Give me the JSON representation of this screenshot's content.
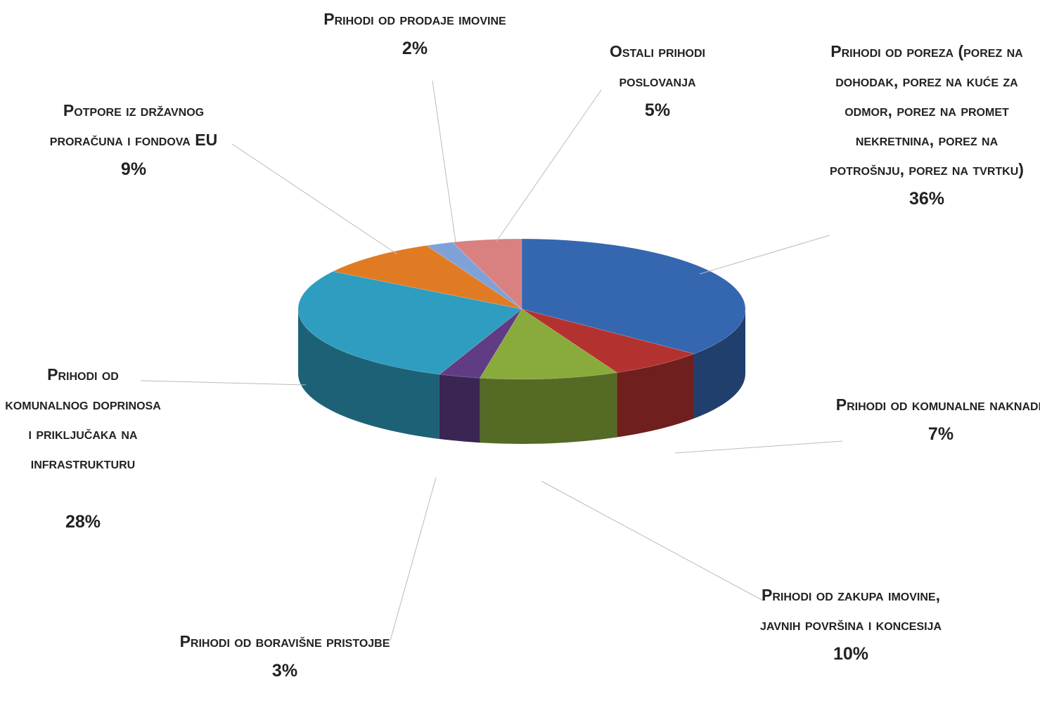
{
  "chart_data": {
    "type": "pie3d",
    "categories": [
      "Prihodi od poreza (porez na dohodak, porez na kuće za odmor, porez na promet nekretnina, porez na potrošnju, porez na tvrtku)",
      "Prihodi od komunalne naknade",
      "Prihodi od zakupa imovine, javnih površina i koncesija",
      "Prihodi od boravišne pristojbe",
      "Prihodi od komunalnog doprinosa i priključaka na infrastrukturu",
      "Potpore iz državnog proračuna i fondova EU",
      "Prihodi od prodaje imovine",
      "Ostali prihodi poslovanja"
    ],
    "values": [
      36,
      7,
      10,
      3,
      28,
      9,
      2,
      5
    ],
    "value_labels": [
      "36%",
      "7%",
      "10%",
      "3%",
      "28%",
      "9%",
      "2%",
      "5%"
    ],
    "colors": [
      "#3566b0",
      "#b3322f",
      "#88ab3b",
      "#5f3c84",
      "#2f9dc0",
      "#e07b24",
      "#7ea2d8",
      "#d98080"
    ]
  }
}
